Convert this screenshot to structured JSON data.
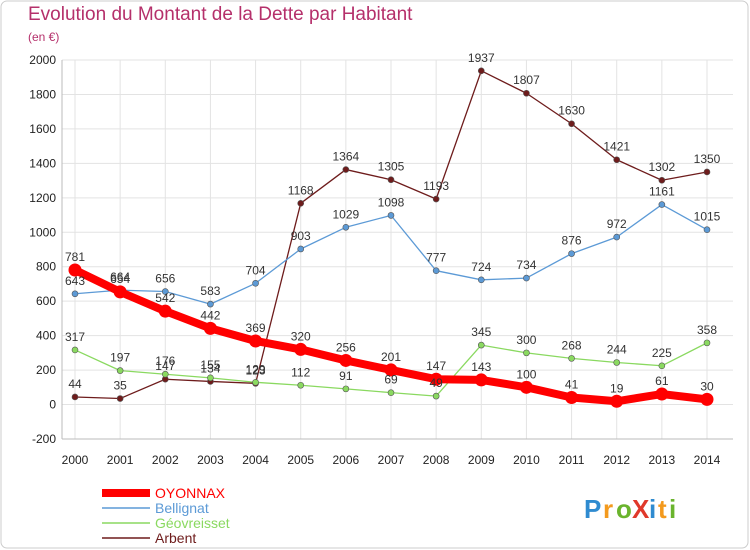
{
  "chart_data": {
    "type": "line",
    "title": "Evolution du Montant de la Dette par Habitant",
    "subtitle": "(en €)",
    "x": [
      "2000",
      "2001",
      "2002",
      "2003",
      "2004",
      "2005",
      "2006",
      "2007",
      "2008",
      "2009",
      "2010",
      "2011",
      "2012",
      "2013",
      "2014"
    ],
    "ylim": [
      -200,
      2000
    ],
    "yticks": [
      -200,
      0,
      200,
      400,
      600,
      800,
      1000,
      1200,
      1400,
      1600,
      1800,
      2000
    ],
    "grid": true,
    "legend_position": "bottom-left",
    "series": [
      {
        "name": "Arbent",
        "color": "#6e1c1c",
        "values": [
          44,
          35,
          147,
          134,
          123,
          1168,
          1364,
          1305,
          1193,
          1937,
          1807,
          1630,
          1421,
          1302,
          1350
        ]
      },
      {
        "name": "Géovreisset",
        "color": "#8ad960",
        "values": [
          317,
          197,
          176,
          155,
          129,
          112,
          91,
          69,
          49,
          345,
          300,
          268,
          244,
          225,
          358
        ]
      },
      {
        "name": "Bellignat",
        "color": "#5c9ad6",
        "values": [
          643,
          664,
          656,
          583,
          704,
          903,
          1029,
          1098,
          777,
          724,
          734,
          876,
          972,
          1161,
          1015
        ]
      },
      {
        "name": "OYONNAX",
        "color": "#ff0000",
        "values": [
          781,
          654,
          542,
          442,
          369,
          320,
          256,
          201,
          147,
          143,
          100,
          41,
          19,
          61,
          30
        ]
      }
    ],
    "legend": [
      {
        "name": "OYONNAX",
        "color": "#ff0000"
      },
      {
        "name": "Bellignat",
        "color": "#5c9ad6"
      },
      {
        "name": "Géovreisset",
        "color": "#8ad960"
      },
      {
        "name": "Arbent",
        "color": "#6e1c1c"
      }
    ]
  },
  "logo": {
    "text": "ProXiti"
  }
}
